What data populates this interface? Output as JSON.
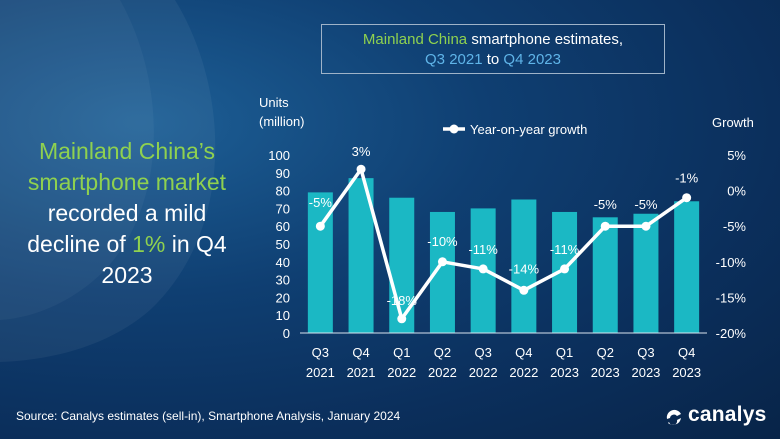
{
  "title": {
    "line1_a": "Mainland China",
    "line1_b": " smartphone estimates,",
    "line2_a": "Q3 2021",
    "line2_b": " to ",
    "line2_c": "Q4 2023"
  },
  "headline": {
    "part1": "Mainland China’s smartphone market",
    "part2": " recorded a mild decline of ",
    "part3": "1%",
    "part4": " in Q4 2023"
  },
  "source": "Source: Canalys estimates (sell-in), Smartphone Analysis, January 2024",
  "logo": {
    "text": "canalys",
    "icon": "canalys-logo-icon"
  },
  "colors": {
    "bar": "#1bb8c4",
    "line": "#ffffff",
    "highlight_green": "#8fd14f",
    "highlight_blue": "#5fb4e8",
    "background": "#0b2f5c"
  },
  "chart_data": {
    "type": "bar",
    "categories": [
      [
        "Q3",
        "2021"
      ],
      [
        "Q4",
        "2021"
      ],
      [
        "Q1",
        "2022"
      ],
      [
        "Q2",
        "2022"
      ],
      [
        "Q3",
        "2022"
      ],
      [
        "Q4",
        "2022"
      ],
      [
        "Q1",
        "2023"
      ],
      [
        "Q2",
        "2023"
      ],
      [
        "Q3",
        "2023"
      ],
      [
        "Q4",
        "2023"
      ]
    ],
    "series": [
      {
        "type": "bar",
        "axis": "left",
        "values": [
          79,
          87,
          76,
          68,
          70,
          75,
          68,
          65,
          67,
          74
        ]
      },
      {
        "type": "line",
        "axis": "right",
        "name": "Year-on-year growth",
        "values": [
          -5,
          3,
          -18,
          -10,
          -11,
          -14,
          -11,
          -5,
          -5,
          -1
        ],
        "labels": [
          "-5%",
          "3%",
          "-18%",
          "-10%",
          "-11%",
          "-14%",
          "-11%",
          "-5%",
          "-5%",
          "-1%"
        ]
      }
    ],
    "ylabel_left": [
      "Units",
      "(million)"
    ],
    "ylabel_right": "Growth",
    "ylim_left": [
      0,
      100
    ],
    "yticks_left": [
      0,
      10,
      20,
      30,
      40,
      50,
      60,
      70,
      80,
      90,
      100
    ],
    "ylim_right": [
      -20,
      5
    ],
    "yticks_right": [
      5,
      0,
      -5,
      -10,
      -15,
      -20
    ],
    "yticklabels_right": [
      "5%",
      "0%",
      "-5%",
      "-10%",
      "-15%",
      "-20%"
    ],
    "legend": "top-center",
    "grid": false
  }
}
